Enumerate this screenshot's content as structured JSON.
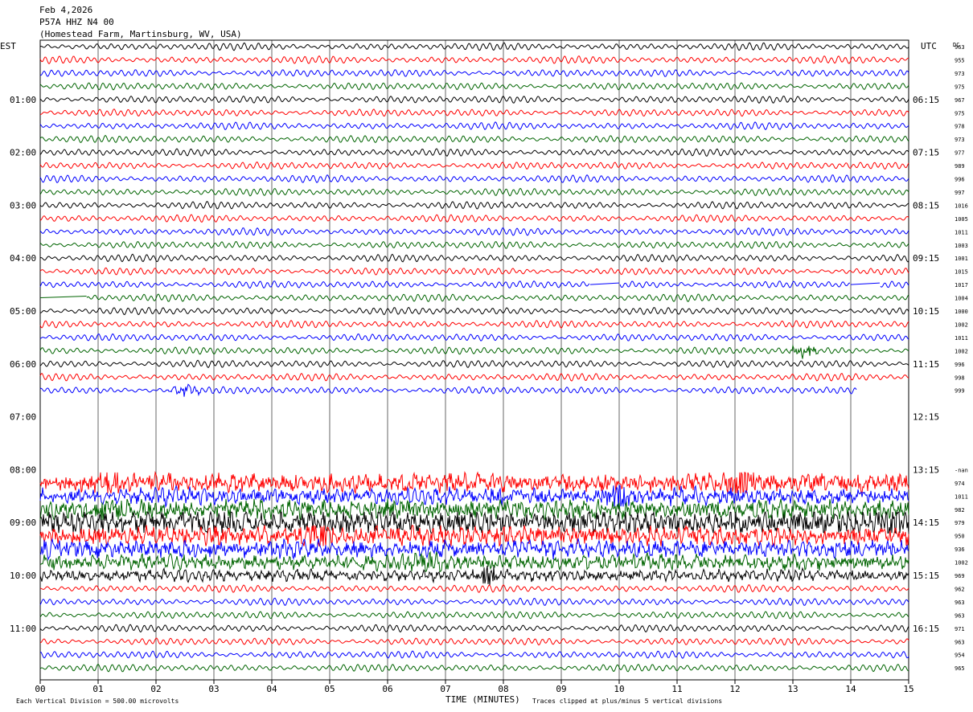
{
  "header": {
    "date": "Feb 4,2026",
    "station": "P57A HHZ N4 00",
    "location": "(Homestead Farm, Martinsburg, WV, USA)"
  },
  "labels": {
    "left_tz": "EST",
    "right_tz": "UTC",
    "dc": "DC",
    "xlabel": "TIME (MINUTES)",
    "footer_left": "Each Vertical Division =  500.00 microvolts",
    "footer_right": "Traces clipped at plus/minus 5 vertical divisions"
  },
  "chart_data": {
    "type": "line",
    "title": "P57A HHZ N4 00",
    "xlabel": "TIME (MINUTES)",
    "x_range": [
      0,
      15
    ],
    "x_ticks": [
      "00",
      "01",
      "02",
      "03",
      "04",
      "05",
      "06",
      "07",
      "08",
      "09",
      "10",
      "11",
      "12",
      "13",
      "14",
      "15"
    ],
    "rows_per_hour": 4,
    "minutes_per_row": 15,
    "trace_colors": [
      "#000000",
      "#ff0000",
      "#0000ff",
      "#006400"
    ],
    "hour_labels_est": [
      "01:00",
      "02:00",
      "03:00",
      "04:00",
      "05:00",
      "06:00",
      "07:00",
      "08:00",
      "09:00",
      "10:00",
      "11:00"
    ],
    "hour_labels_utc": [
      "06:15",
      "07:15",
      "08:15",
      "09:15",
      "10:15",
      "11:15",
      "12:15",
      "13:15",
      "14:15",
      "15:15",
      "16:15"
    ],
    "rows": [
      {
        "dc": "963",
        "amp": 1.0
      },
      {
        "dc": "955",
        "amp": 1.0
      },
      {
        "dc": "973",
        "amp": 1.0
      },
      {
        "dc": "975",
        "amp": 1.0
      },
      {
        "dc": "967",
        "amp": 1.0
      },
      {
        "dc": "975",
        "amp": 1.0
      },
      {
        "dc": "978",
        "amp": 1.0
      },
      {
        "dc": "973",
        "amp": 1.0
      },
      {
        "dc": "977",
        "amp": 1.0
      },
      {
        "dc": "989",
        "amp": 1.0
      },
      {
        "dc": "996",
        "amp": 1.0
      },
      {
        "dc": "997",
        "amp": 1.0
      },
      {
        "dc": "1016",
        "amp": 1.0
      },
      {
        "dc": "1005",
        "amp": 1.0
      },
      {
        "dc": "1011",
        "amp": 1.0
      },
      {
        "dc": "1003",
        "amp": 1.0
      },
      {
        "dc": "1001",
        "amp": 1.0
      },
      {
        "dc": "1015",
        "amp": 1.0
      },
      {
        "dc": "1017",
        "amp": 1.0,
        "gaps": [
          [
            9.5,
            10.0
          ],
          [
            14.0,
            14.5
          ]
        ]
      },
      {
        "dc": "1004",
        "amp": 1.0,
        "gaps": [
          [
            0.0,
            0.8
          ]
        ]
      },
      {
        "dc": "1000",
        "amp": 1.0
      },
      {
        "dc": "1002",
        "amp": 1.0
      },
      {
        "dc": "1011",
        "amp": 1.0
      },
      {
        "dc": "1002",
        "amp": 1.0,
        "events": [
          [
            13.2,
            1.6
          ]
        ]
      },
      {
        "dc": "996",
        "amp": 1.0
      },
      {
        "dc": "998",
        "amp": 1.0
      },
      {
        "dc": "999",
        "amp": 1.0,
        "end": 14.1,
        "events": [
          [
            2.5,
            1.3
          ]
        ]
      },
      {
        "dc": "",
        "missing": true
      },
      {
        "dc": "",
        "missing": true
      },
      {
        "dc": "",
        "missing": true
      },
      {
        "dc": "",
        "missing": true
      },
      {
        "dc": "",
        "missing": true
      },
      {
        "dc": "-nan",
        "missing": true
      },
      {
        "dc": "974",
        "amp": 1.7,
        "noisy": true,
        "events": [
          [
            1.2,
            2.2
          ],
          [
            12.1,
            2.6
          ]
        ]
      },
      {
        "dc": "1011",
        "amp": 1.5,
        "noisy": true,
        "events": [
          [
            10.0,
            2.0
          ],
          [
            8.0,
            1.4
          ]
        ]
      },
      {
        "dc": "982",
        "amp": 1.7,
        "noisy": true,
        "events": [
          [
            1.1,
            1.8
          ]
        ]
      },
      {
        "dc": "979",
        "amp": 1.9,
        "noisy": true,
        "events": [
          [
            14.7,
            2.2
          ]
        ]
      },
      {
        "dc": "950",
        "amp": 1.7,
        "noisy": true,
        "events": [
          [
            4.8,
            2.3
          ]
        ]
      },
      {
        "dc": "936",
        "amp": 1.6,
        "noisy": true
      },
      {
        "dc": "1002",
        "amp": 1.5,
        "noisy": true,
        "events": [
          [
            6.6,
            1.6
          ]
        ]
      },
      {
        "dc": "969",
        "amp": 1.2,
        "noisy": true,
        "events": [
          [
            7.7,
            2.0
          ]
        ]
      },
      {
        "dc": "962",
        "amp": 1.0
      },
      {
        "dc": "963",
        "amp": 1.0
      },
      {
        "dc": "963",
        "amp": 1.0
      },
      {
        "dc": "971",
        "amp": 1.0
      },
      {
        "dc": "963",
        "amp": 1.0
      },
      {
        "dc": "954",
        "amp": 1.0
      },
      {
        "dc": "965",
        "amp": 1.0
      }
    ]
  }
}
